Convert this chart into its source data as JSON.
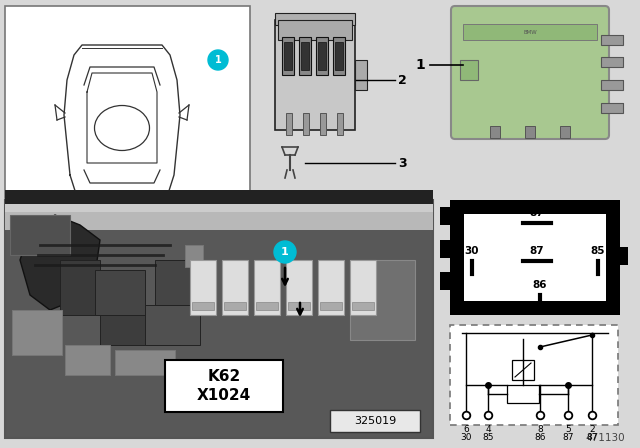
{
  "bg_color": "#d8d8d8",
  "callout_circle_color": "#00bcd4",
  "relay_green": "#a8c890",
  "relay_green_dark": "#90b878",
  "relay_pin_color": "#888888",
  "k62_label": "K62\nX1024",
  "part_number": "325019",
  "doc_number": "471130",
  "photo_bg": "#585858",
  "photo_bg2": "#484848",
  "car_box_bg": "white",
  "pin_box_bg": "black",
  "pin_box_inner": "white",
  "schematic_border": "#888888"
}
